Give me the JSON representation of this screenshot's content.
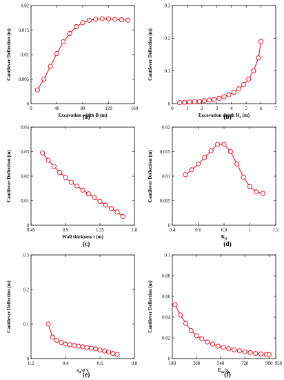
{
  "chart_data": [
    {
      "type": "line",
      "panel_label": "(a)",
      "xlabel": "Excavation width B (m)",
      "ylabel": "Cantilever Deflection (m)",
      "xlim": [
        0,
        160
      ],
      "ylim": [
        0,
        0.02
      ],
      "xticks": [
        0,
        40,
        80,
        120,
        160
      ],
      "xtick_labels": [
        "0",
        "40",
        "80",
        "120",
        "160"
      ],
      "yticks": [
        0,
        0.005,
        0.01,
        0.015,
        0.02
      ],
      "ytick_labels": [
        "0",
        "0.005",
        "0.01",
        "0.015",
        "0.02"
      ],
      "x": [
        10,
        20,
        30,
        40,
        50,
        60,
        70,
        80,
        90,
        100,
        110,
        120,
        130,
        140,
        150
      ],
      "y": [
        0.0028,
        0.005,
        0.0076,
        0.0102,
        0.0126,
        0.0143,
        0.0157,
        0.0165,
        0.017,
        0.0172,
        0.0173,
        0.0173,
        0.0172,
        0.0171,
        0.017
      ],
      "color": "#e0000f",
      "marker": "circle-open"
    },
    {
      "type": "line",
      "panel_label": "(b)",
      "xlabel": "Excavation depth H",
      "xlabel_sub": "e",
      "xlabel_unit": " (m)",
      "ylabel": "Cantilever Deflection (m)",
      "xlim": [
        0,
        7
      ],
      "ylim": [
        0,
        0.3
      ],
      "xticks": [
        0,
        1,
        2,
        3,
        4,
        5,
        6,
        7
      ],
      "xtick_labels": [
        "0",
        "1",
        "2",
        "3",
        "4",
        "5",
        "6",
        "7"
      ],
      "yticks": [
        0,
        0.1,
        0.2,
        0.3
      ],
      "ytick_labels": [
        "0",
        "0.1",
        "0.2",
        "0.3"
      ],
      "x": [
        0.5,
        0.83,
        1.17,
        1.5,
        1.83,
        2.17,
        2.5,
        2.83,
        3.17,
        3.5,
        3.83,
        4.17,
        4.5,
        4.83,
        5.17,
        5.5,
        5.83,
        6.0
      ],
      "y": [
        0.003,
        0.004,
        0.005,
        0.006,
        0.007,
        0.009,
        0.011,
        0.013,
        0.016,
        0.021,
        0.027,
        0.035,
        0.045,
        0.058,
        0.075,
        0.1,
        0.14,
        0.19
      ],
      "color": "#e0000f",
      "marker": "circle-open"
    },
    {
      "type": "line",
      "panel_label": "(c)",
      "xlabel": "Wall thickness t (m)",
      "ylabel": "Cantilever Deflection (m)",
      "xlim": [
        0.45,
        1.8
      ],
      "ylim": [
        0,
        0.04
      ],
      "xticks": [
        0.45,
        0.9,
        1.35,
        1.8
      ],
      "xtick_labels": [
        "0.45",
        "0.9",
        "1.35",
        "1.8"
      ],
      "yticks": [
        0,
        0.01,
        0.02,
        0.03,
        0.04
      ],
      "ytick_labels": [
        "0",
        "0.01",
        "0.02",
        "0.03",
        "0.04"
      ],
      "x": [
        0.6,
        0.675,
        0.75,
        0.825,
        0.9,
        0.975,
        1.05,
        1.125,
        1.2,
        1.275,
        1.35,
        1.425,
        1.5,
        1.575,
        1.65
      ],
      "y": [
        0.0295,
        0.0265,
        0.024,
        0.0215,
        0.0195,
        0.0175,
        0.016,
        0.0143,
        0.0128,
        0.0113,
        0.0097,
        0.0082,
        0.0068,
        0.0054,
        0.0035
      ],
      "color": "#e0000f",
      "marker": "circle-open"
    },
    {
      "type": "line",
      "panel_label": "(d)",
      "xlabel": "K",
      "xlabel_sub": "0",
      "xlabel_unit": "",
      "ylabel": "Cantilever Deflection (m)",
      "xlim": [
        0.4,
        1.2
      ],
      "ylim": [
        0,
        0.02
      ],
      "xticks": [
        0.4,
        0.6,
        0.8,
        1.0,
        1.2
      ],
      "xtick_labels": [
        "0.4",
        "0.6",
        "0.8",
        "1",
        "1.2"
      ],
      "yticks": [
        0,
        0.005,
        0.01,
        0.015,
        0.02
      ],
      "ytick_labels": [
        "0",
        "0.005",
        "0.01",
        "0.015",
        "0.02"
      ],
      "x": [
        0.5,
        0.55,
        0.6,
        0.65,
        0.7,
        0.75,
        0.8,
        0.85,
        0.9,
        0.95,
        1.0,
        1.05,
        1.1
      ],
      "y": [
        0.0103,
        0.0113,
        0.0125,
        0.0138,
        0.0152,
        0.0165,
        0.0165,
        0.015,
        0.0125,
        0.0098,
        0.0079,
        0.0068,
        0.0065
      ],
      "color": "#e0000f",
      "marker": "circle-open"
    },
    {
      "type": "line",
      "panel_label": "(e)",
      "xlabel": "s",
      "xlabel_sub": "u",
      "xlabel_unit": "/σ′v",
      "ylabel": "Cantilever Deflection (m)",
      "xlim": [
        0.2,
        0.8
      ],
      "ylim": [
        0,
        0.3
      ],
      "xticks": [
        0.2,
        0.4,
        0.6,
        0.8
      ],
      "xtick_labels": [
        "0.2",
        "0.4",
        "0.6",
        "0.8"
      ],
      "yticks": [
        0,
        0.1,
        0.2,
        0.3
      ],
      "ytick_labels": [
        "0",
        "0.1",
        "0.2",
        "0.3"
      ],
      "x": [
        0.3,
        0.325,
        0.35,
        0.375,
        0.4,
        0.425,
        0.45,
        0.475,
        0.5,
        0.525,
        0.55,
        0.575,
        0.6,
        0.625,
        0.65,
        0.675,
        0.7
      ],
      "y": [
        0.1,
        0.062,
        0.053,
        0.047,
        0.042,
        0.04,
        0.038,
        0.036,
        0.034,
        0.032,
        0.03,
        0.028,
        0.025,
        0.022,
        0.019,
        0.015,
        0.012
      ],
      "color": "#e0000f",
      "marker": "circle-open"
    },
    {
      "type": "line",
      "panel_label": "(f)",
      "xlabel": "E",
      "xlabel_sub": "ur",
      "xlabel_unit": "/s",
      "xlabel_sub2": "u",
      "ylabel": "Cantilever Deflection (m)",
      "xlim": [
        180,
        950
      ],
      "ylim": [
        0,
        0.1
      ],
      "xticks": [
        180,
        360,
        540,
        720,
        900
      ],
      "xtick_labels": [
        "180",
        "360",
        "540",
        "720",
        "900"
      ],
      "extra_tick_label": "950",
      "yticks": [
        0,
        0.02,
        0.04,
        0.06,
        0.08,
        0.1
      ],
      "ytick_labels": [
        "0",
        "0.02",
        "0.04",
        "0.06",
        "0.08",
        "0.1"
      ],
      "x": [
        200,
        240,
        280,
        320,
        360,
        400,
        440,
        480,
        520,
        560,
        600,
        640,
        680,
        720,
        760,
        800,
        840,
        880,
        900
      ],
      "y": [
        0.052,
        0.042,
        0.034,
        0.027,
        0.022,
        0.019,
        0.016,
        0.014,
        0.012,
        0.011,
        0.0095,
        0.0085,
        0.0075,
        0.0065,
        0.0058,
        0.005,
        0.0045,
        0.004,
        0.0038
      ],
      "color": "#e0000f",
      "marker": "circle-open"
    }
  ]
}
